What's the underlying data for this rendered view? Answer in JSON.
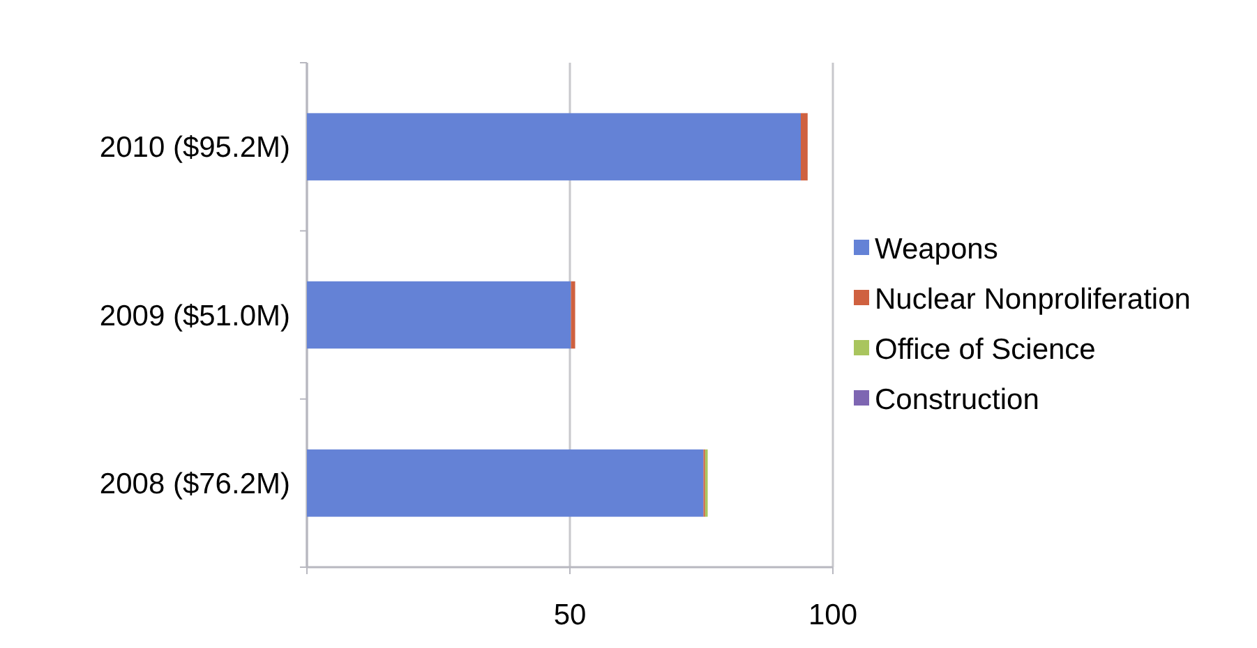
{
  "chart_data": {
    "type": "bar",
    "orientation": "horizontal",
    "stacked": true,
    "categories": [
      "2010 ($95.2M)",
      "2009 ($51.0M)",
      "2008 ($76.2M)"
    ],
    "series": [
      {
        "name": "Weapons",
        "color": "#6482d6",
        "values": [
          93.9,
          50.2,
          75.4
        ]
      },
      {
        "name": "Nuclear Nonproliferation",
        "color": "#cf6140",
        "values": [
          1.3,
          0.8,
          0.3
        ]
      },
      {
        "name": "Office of Science",
        "color": "#a9c55e",
        "values": [
          0,
          0,
          0.5
        ]
      },
      {
        "name": "Construction",
        "color": "#7e66b2",
        "values": [
          0,
          0,
          0
        ]
      }
    ],
    "xlim": [
      0,
      100
    ],
    "xticks": [
      {
        "value": 0,
        "label": null
      },
      50,
      100
    ],
    "grid": "x",
    "legend": "right"
  }
}
